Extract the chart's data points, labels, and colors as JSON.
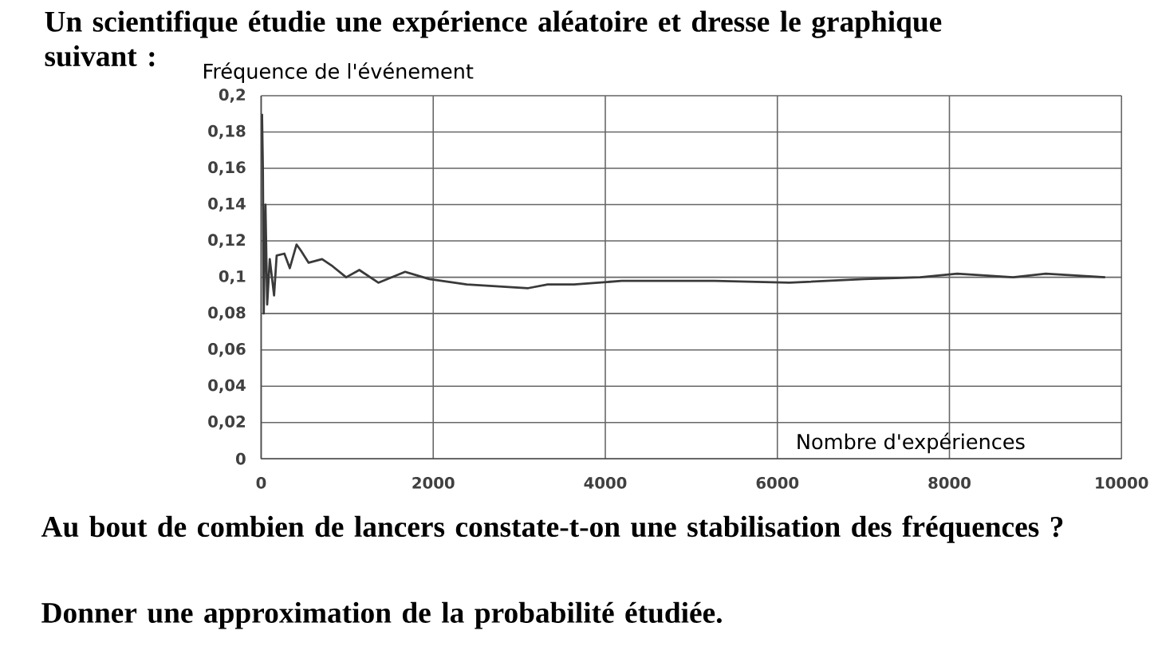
{
  "chart_data": {
    "type": "line",
    "title": "Un scientifique étudie une expérience aléatoire et dresse le graphique suivant :",
    "ylabel": "Fréquence de l'événement",
    "xlabel": "Nombre d'expériences",
    "annotations": [
      "Au bout de combien de lancers constate-t-on une stabilisation des fréquences ?",
      "Donner une approximation de la probabilité étudiée."
    ],
    "xlim": [
      0,
      10000
    ],
    "xticks": [
      0,
      2000,
      4000,
      6000,
      8000,
      10000
    ],
    "ylim": [
      0,
      0.2
    ],
    "yticks": [
      {
        "value": 0,
        "label": "0"
      },
      {
        "value": 0.02,
        "label": "0,02"
      },
      {
        "value": 0.04,
        "label": "0,04"
      },
      {
        "value": 0.06,
        "label": "0,06"
      },
      {
        "value": 0.08,
        "label": "0,08"
      },
      {
        "value": 0.1,
        "label": "0,1"
      },
      {
        "value": 0.12,
        "label": "0,12"
      },
      {
        "value": 0.14,
        "label": "0,14"
      },
      {
        "value": 0.16,
        "label": "0,16"
      },
      {
        "value": 0.18,
        "label": "0,18"
      },
      {
        "value": 0.2,
        "label": "0,2"
      }
    ],
    "grid": true,
    "x": [
      10,
      20,
      30,
      50,
      70,
      100,
      150,
      180,
      270,
      333,
      411,
      458,
      552,
      708,
      832,
      988,
      1141,
      1362,
      1674,
      1954,
      2390,
      3104,
      3330,
      3637,
      4190,
      5270,
      6140,
      7010,
      7660,
      8090,
      8740,
      9120,
      9810
    ],
    "series": [
      {
        "color": "#3a3a3a",
        "values": [
          0.19,
          0.16,
          0.08,
          0.14,
          0.085,
          0.11,
          0.09,
          0.112,
          0.113,
          0.105,
          0.118,
          0.115,
          0.108,
          0.11,
          0.106,
          0.1,
          0.104,
          0.097,
          0.103,
          0.099,
          0.096,
          0.094,
          0.096,
          0.096,
          0.098,
          0.098,
          0.097,
          0.099,
          0.1,
          0.102,
          0.1,
          0.102,
          0.1
        ]
      }
    ]
  }
}
